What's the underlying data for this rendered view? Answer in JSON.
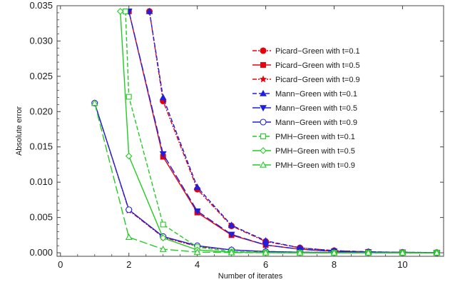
{
  "chart_data": {
    "type": "line",
    "xlabel": "Number of iterates",
    "ylabel": "Absolute error",
    "xlim": [
      -0.1,
      11.2
    ],
    "ylim": [
      -0.0005,
      0.035
    ],
    "xticks": [
      0,
      2,
      4,
      6,
      8,
      10
    ],
    "xtick_labels": [
      "0",
      "2",
      "4",
      "6",
      "8",
      "10"
    ],
    "yticks": [
      0.0,
      0.005,
      0.01,
      0.015,
      0.02,
      0.025,
      0.03,
      0.035
    ],
    "ytick_labels": [
      "0.000",
      "0.005",
      "0.010",
      "0.015",
      "0.020",
      "0.025",
      "0.030",
      "0.035"
    ],
    "legend_position": "right",
    "series": [
      {
        "name": "Picard−Green with t=0.1",
        "color": "#e8000b",
        "dash": "dashdot",
        "marker": "circle",
        "filled": true,
        "x": [
          2.6,
          3,
          4,
          5,
          6,
          7,
          8,
          9,
          10,
          11
        ],
        "y": [
          0.0342,
          0.0215,
          0.009,
          0.0038,
          0.0016,
          0.0007,
          0.0003,
          0.00013,
          6e-05,
          3e-05
        ]
      },
      {
        "name": "Picard−Green with t=0.5",
        "color": "#e8000b",
        "dash": "solid",
        "marker": "square",
        "filled": true,
        "x": [
          2.0,
          3,
          4,
          5,
          6,
          7,
          8,
          9,
          10,
          11
        ],
        "y": [
          0.0342,
          0.0136,
          0.0057,
          0.0025,
          0.0011,
          0.0005,
          0.0002,
          0.0001,
          5e-05,
          2e-05
        ]
      },
      {
        "name": "Picard−Green with t=0.9",
        "color": "#e8000b",
        "dash": "dashdot",
        "marker": "star",
        "filled": true,
        "x": [
          1.0,
          2,
          3,
          4,
          5,
          6,
          7,
          8,
          9,
          10,
          11
        ],
        "y": [
          0.0212,
          0.006,
          0.0022,
          0.0009,
          0.0004,
          0.00017,
          8e-05,
          4e-05,
          2e-05,
          1e-05,
          5e-06
        ]
      },
      {
        "name": "Mann−Green with t=0.1",
        "color": "#1f1fdd",
        "dash": "dashed",
        "marker": "triangle-up",
        "filled": true,
        "x": [
          2.6,
          3,
          4,
          5,
          6,
          7,
          8,
          9,
          10,
          11
        ],
        "y": [
          0.0342,
          0.022,
          0.0093,
          0.0039,
          0.0017,
          0.0007,
          0.0003,
          0.00014,
          6e-05,
          3e-05
        ]
      },
      {
        "name": "Mann−Green with t=0.5",
        "color": "#1f1fdd",
        "dash": "longdash",
        "marker": "triangle-down",
        "filled": true,
        "x": [
          2.0,
          3,
          4,
          5,
          6,
          7,
          8,
          9,
          10,
          11
        ],
        "y": [
          0.0342,
          0.014,
          0.0059,
          0.0026,
          0.0011,
          0.0005,
          0.0002,
          0.0001,
          5e-05,
          2e-05
        ]
      },
      {
        "name": "Mann−Green with t=0.9",
        "color": "#1f1fdd",
        "dash": "solid",
        "marker": "circle",
        "filled": false,
        "x": [
          1.0,
          2,
          3,
          4,
          5,
          6,
          7,
          8,
          9,
          10,
          11
        ],
        "y": [
          0.0212,
          0.0061,
          0.0023,
          0.001,
          0.0004,
          0.00018,
          8e-05,
          4e-05,
          2e-05,
          1e-05,
          5e-06
        ]
      },
      {
        "name": "PMH−Green with t=0.1",
        "color": "#22cc22",
        "dash": "dashed",
        "marker": "square",
        "filled": false,
        "x": [
          1.9,
          2,
          3,
          4,
          5,
          6,
          7,
          8,
          9,
          10,
          11
        ],
        "y": [
          0.0342,
          0.0221,
          0.004,
          0.0008,
          0.00017,
          4e-05,
          1e-05,
          0.0,
          0.0,
          0.0,
          0.0
        ]
      },
      {
        "name": "PMH−Green with t=0.5",
        "color": "#22cc22",
        "dash": "solid",
        "marker": "diamond",
        "filled": false,
        "x": [
          1.75,
          2,
          3,
          4,
          5,
          6,
          7,
          8,
          9,
          10,
          11
        ],
        "y": [
          0.0342,
          0.0137,
          0.0021,
          0.0004,
          8e-05,
          2e-05,
          5e-06,
          0.0,
          0.0,
          0.0,
          0.0
        ]
      },
      {
        "name": "PMH−Green with t=0.9",
        "color": "#22cc22",
        "dash": "longdash",
        "marker": "triangle-up",
        "filled": false,
        "x": [
          1.0,
          2,
          3,
          4,
          5,
          6,
          7,
          8,
          9,
          10,
          11
        ],
        "y": [
          0.0212,
          0.0022,
          0.0005,
          0.0001,
          3e-05,
          1e-05,
          0.0,
          0.0,
          0.0,
          0.0,
          0.0
        ]
      }
    ]
  }
}
